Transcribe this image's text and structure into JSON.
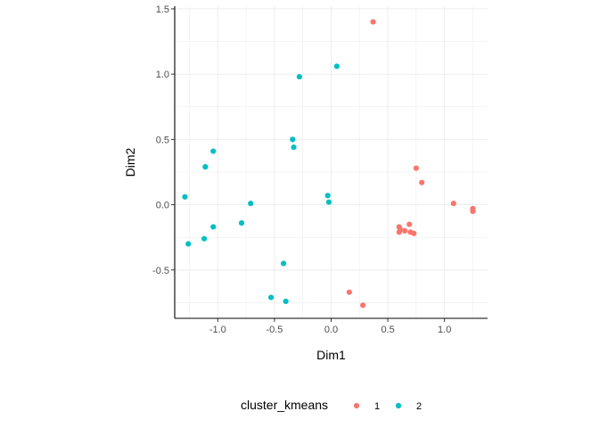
{
  "chart_data": {
    "type": "scatter",
    "title": "",
    "xlabel": "Dim1",
    "ylabel": "Dim2",
    "xlim": [
      -1.38,
      1.38
    ],
    "ylim": [
      -0.87,
      1.52
    ],
    "x_ticks": [
      -1.0,
      -0.5,
      0.0,
      0.5,
      1.0
    ],
    "x_tick_labels": [
      "-1.0",
      "-0.5",
      "0.0",
      "0.5",
      "1.0"
    ],
    "y_ticks": [
      -0.5,
      0.0,
      0.5,
      1.0,
      1.5
    ],
    "y_tick_labels": [
      "-0.5",
      "0.0",
      "0.5",
      "1.0",
      "1.5"
    ],
    "grid": true,
    "legend_position": "bottom",
    "legend_title": "cluster_kmeans",
    "series": [
      {
        "name": "1",
        "color": "#F8766D",
        "points": [
          {
            "x": 0.37,
            "y": 1.4
          },
          {
            "x": 0.75,
            "y": 0.28
          },
          {
            "x": 0.8,
            "y": 0.17
          },
          {
            "x": 1.08,
            "y": 0.01
          },
          {
            "x": 1.25,
            "y": -0.03
          },
          {
            "x": 1.25,
            "y": -0.05
          },
          {
            "x": 0.6,
            "y": -0.17
          },
          {
            "x": 0.61,
            "y": -0.19
          },
          {
            "x": 0.6,
            "y": -0.21
          },
          {
            "x": 0.65,
            "y": -0.2
          },
          {
            "x": 0.69,
            "y": -0.15
          },
          {
            "x": 0.7,
            "y": -0.21
          },
          {
            "x": 0.73,
            "y": -0.22
          },
          {
            "x": 0.16,
            "y": -0.67
          },
          {
            "x": 0.28,
            "y": -0.77
          }
        ]
      },
      {
        "name": "2",
        "color": "#00BFC4",
        "points": [
          {
            "x": 0.05,
            "y": 1.06
          },
          {
            "x": -0.28,
            "y": 0.98
          },
          {
            "x": -0.34,
            "y": 0.5
          },
          {
            "x": -0.33,
            "y": 0.44
          },
          {
            "x": -1.04,
            "y": 0.41
          },
          {
            "x": -1.11,
            "y": 0.29
          },
          {
            "x": -1.29,
            "y": 0.06
          },
          {
            "x": -0.71,
            "y": 0.01
          },
          {
            "x": -0.03,
            "y": 0.07
          },
          {
            "x": -0.02,
            "y": 0.02
          },
          {
            "x": -0.79,
            "y": -0.14
          },
          {
            "x": -1.04,
            "y": -0.17
          },
          {
            "x": -1.12,
            "y": -0.26
          },
          {
            "x": -1.26,
            "y": -0.3
          },
          {
            "x": -0.42,
            "y": -0.45
          },
          {
            "x": -0.53,
            "y": -0.71
          },
          {
            "x": -0.4,
            "y": -0.74
          }
        ]
      }
    ]
  }
}
